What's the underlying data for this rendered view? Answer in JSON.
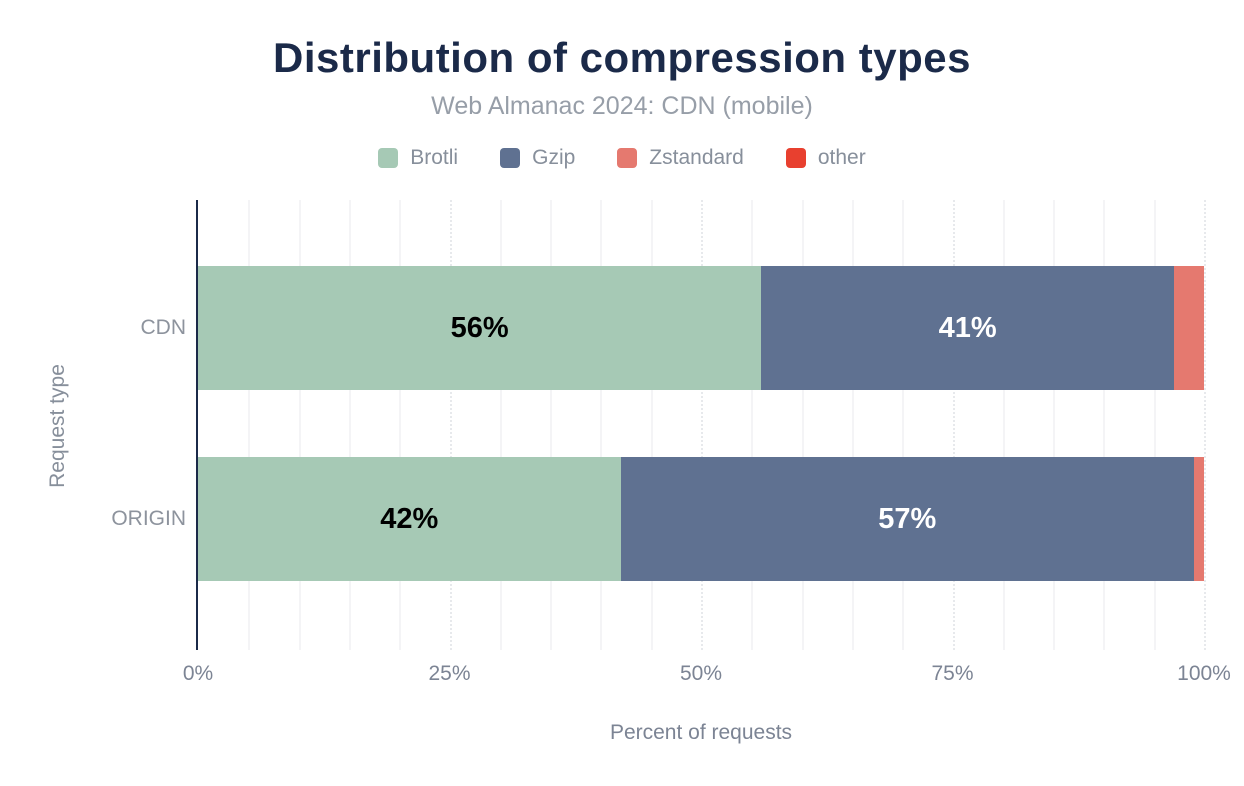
{
  "title": "Distribution of compression types",
  "subtitle": "Web Almanac 2024: CDN (mobile)",
  "legend": [
    {
      "label": "Brotli",
      "color": "#a6c9b5"
    },
    {
      "label": "Gzip",
      "color": "#5f7191"
    },
    {
      "label": "Zstandard",
      "color": "#e5796f"
    },
    {
      "label": "other",
      "color": "#e8402f"
    }
  ],
  "chart_data": {
    "type": "bar",
    "orientation": "horizontal",
    "stacked": true,
    "title": "Distribution of compression types",
    "subtitle": "Web Almanac 2024: CDN (mobile)",
    "categories": [
      "CDN",
      "ORIGIN"
    ],
    "series": [
      {
        "name": "Brotli",
        "color": "#a6c9b5",
        "values": [
          56,
          42
        ],
        "labels": [
          "56%",
          "42%"
        ],
        "label_color": "#000000"
      },
      {
        "name": "Gzip",
        "color": "#5f7191",
        "values": [
          41,
          57
        ],
        "labels": [
          "41%",
          "57%"
        ],
        "label_color": "#ffffff"
      },
      {
        "name": "Zstandard",
        "color": "#e5796f",
        "values": [
          3,
          1
        ],
        "labels": [
          "",
          ""
        ],
        "label_color": "#000000"
      },
      {
        "name": "other",
        "color": "#e8402f",
        "values": [
          0,
          0
        ],
        "labels": [
          "",
          ""
        ],
        "label_color": "#ffffff"
      }
    ],
    "xlabel": "Percent of requests",
    "ylabel": "Request type",
    "xlim": [
      0,
      100
    ],
    "x_ticks": [
      {
        "value": 0,
        "label": "0%"
      },
      {
        "value": 25,
        "label": "25%"
      },
      {
        "value": 50,
        "label": "50%"
      },
      {
        "value": 75,
        "label": "75%"
      },
      {
        "value": 100,
        "label": "100%"
      }
    ],
    "grid": {
      "minor_step": 5,
      "major_step": 25,
      "minor_color": "#f4f4f6",
      "major_color": "#e7e9ec"
    },
    "axis_color": "#1b2a49",
    "legend_position": "top"
  }
}
